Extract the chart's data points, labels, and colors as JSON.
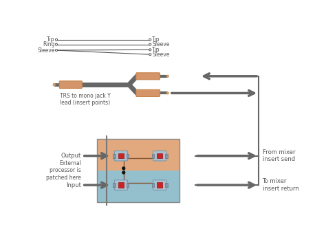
{
  "bg_color": "#ffffff",
  "line_color": "#555555",
  "jack_body_color": "#d4956a",
  "jack_tip_color": "#c8834a",
  "cable_color": "#666666",
  "arrow_color": "#666666",
  "patchbay_orange_bg": "#dfa070",
  "patchbay_blue_bg": "#88b8c8",
  "patchbay_border": "#888888",
  "socket_red": "#cc2222",
  "socket_gray": "#99aacc",
  "socket_dark": "#556677",
  "wire_color": "#885533",
  "labels": {
    "tip_left": "Tip",
    "ring_left": "Ring",
    "sleeve_left": "Sleeve",
    "tip_r1": "Tip",
    "sleeve_r1": "Sleeve",
    "tip_r2": "Tip",
    "sleeve_r2": "Sleeve",
    "trs_label": "TRS to mono jack Y\nlead (insert points)",
    "output_label": "Output",
    "input_label": "Input",
    "ext_processor_label": "External\nprocessor is\npatched here",
    "from_mixer_label": "From mixer\ninsert send",
    "to_mixer_label": "To mixer\ninsert return"
  }
}
